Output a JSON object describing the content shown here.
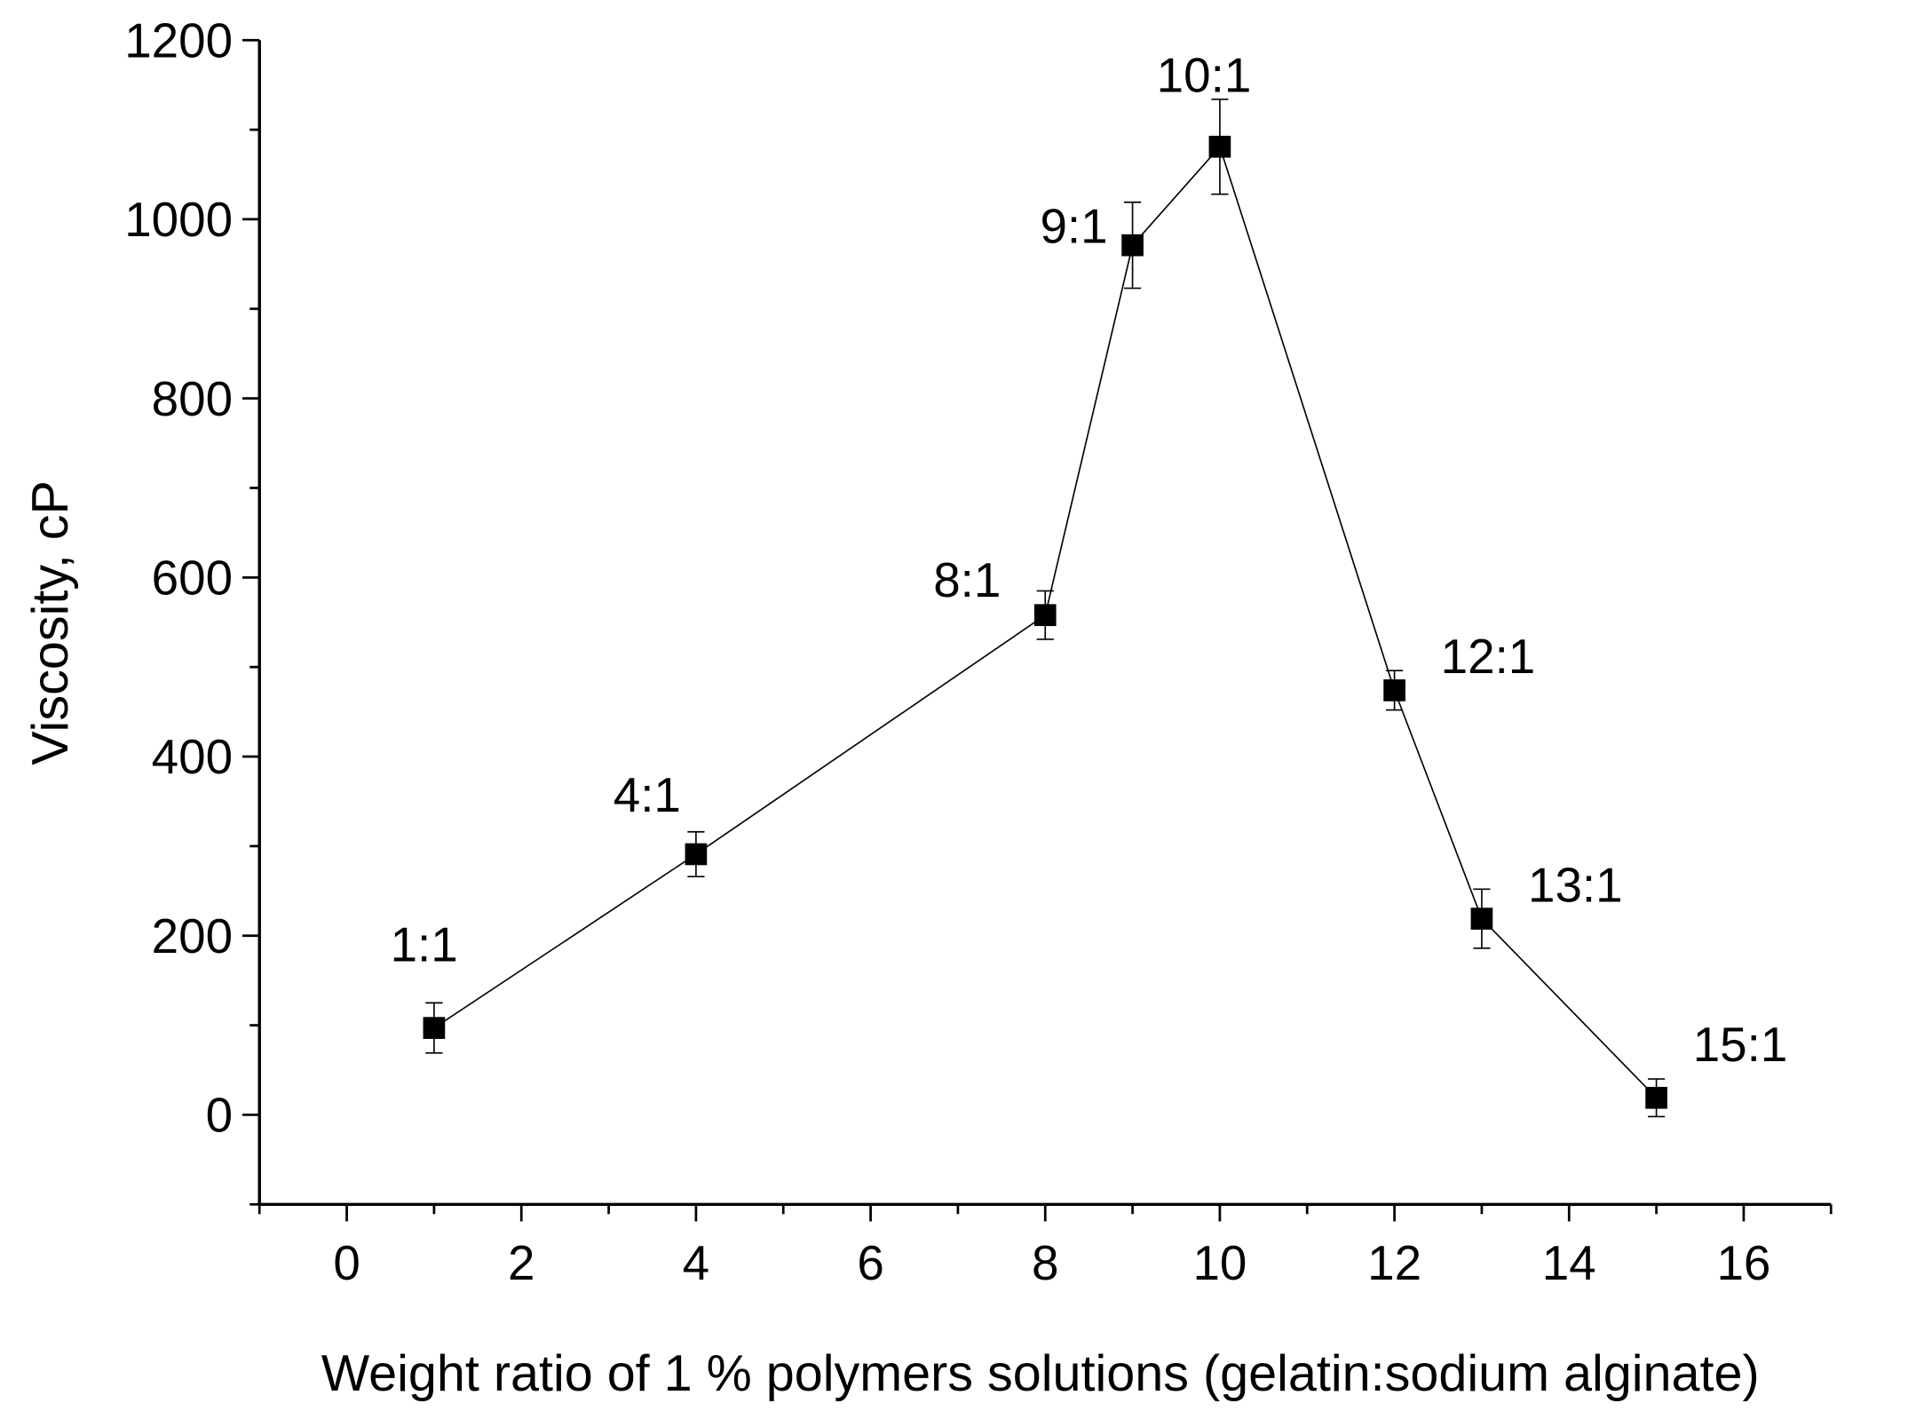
{
  "chart_data": {
    "type": "line",
    "title": "",
    "xlabel": "Weight ratio of 1 % polymers solutions (gelatin:sodium alginate)",
    "ylabel": "Viscosity, cP",
    "xlim": [
      -1,
      17
    ],
    "ylim": [
      -100,
      1200
    ],
    "xticks": [
      0,
      2,
      4,
      6,
      8,
      10,
      12,
      14,
      16
    ],
    "yticks": [
      0,
      200,
      400,
      600,
      800,
      1000,
      1200
    ],
    "grid": false,
    "series": [
      {
        "name": "Viscosity",
        "color": "#000000",
        "marker": "square",
        "x": [
          1,
          4,
          8,
          9,
          10,
          12,
          13,
          15
        ],
        "y": [
          97,
          291,
          558,
          971,
          1081,
          474,
          219,
          19
        ],
        "error": [
          28,
          25,
          27,
          48,
          53,
          22,
          33,
          21
        ],
        "labels": [
          "1:1",
          "4:1",
          "8:1",
          "9:1",
          "10:1",
          "12:1",
          "13:1",
          "15:1"
        ]
      }
    ]
  }
}
